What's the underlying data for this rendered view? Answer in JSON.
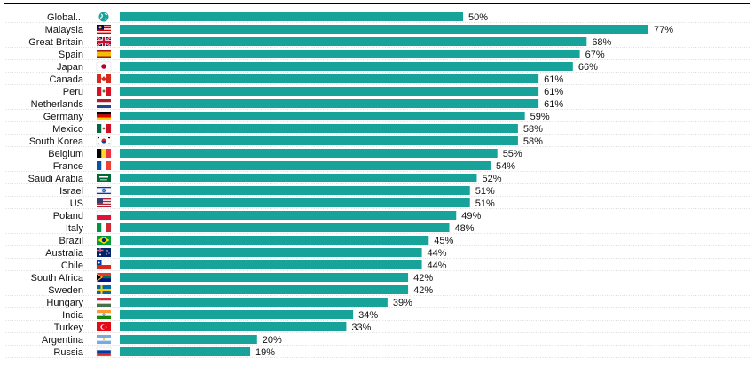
{
  "chart_data": {
    "type": "bar",
    "orientation": "horizontal",
    "title": "",
    "xlabel": "",
    "ylabel": "",
    "xlim": [
      0,
      100
    ],
    "value_suffix": "%",
    "bar_color": "#17a39a",
    "grid": false,
    "legend": "none",
    "categories": [
      "Global...",
      "Malaysia",
      "Great Britain",
      "Spain",
      "Japan",
      "Canada",
      "Peru",
      "Netherlands",
      "Germany",
      "Mexico",
      "South Korea",
      "Belgium",
      "France",
      "Saudi Arabia",
      "Israel",
      "US",
      "Poland",
      "Italy",
      "Brazil",
      "Australia",
      "Chile",
      "South Africa",
      "Sweden",
      "Hungary",
      "India",
      "Turkey",
      "Argentina",
      "Russia"
    ],
    "values": [
      50,
      77,
      68,
      67,
      66,
      61,
      61,
      61,
      59,
      58,
      58,
      55,
      54,
      52,
      51,
      51,
      49,
      48,
      45,
      44,
      44,
      42,
      42,
      39,
      34,
      33,
      20,
      19
    ],
    "value_labels": [
      "50%",
      "77%",
      "68%",
      "67%",
      "66%",
      "61%",
      "61%",
      "61%",
      "59%",
      "58%",
      "58%",
      "55%",
      "54%",
      "52%",
      "51%",
      "51%",
      "49%",
      "48%",
      "45%",
      "44%",
      "44%",
      "42%",
      "42%",
      "39%",
      "34%",
      "33%",
      "20%",
      "19%"
    ],
    "icons": [
      "globe-icon",
      "flag-malaysia-icon",
      "flag-great-britain-icon",
      "flag-spain-icon",
      "flag-japan-icon",
      "flag-canada-icon",
      "flag-peru-icon",
      "flag-netherlands-icon",
      "flag-germany-icon",
      "flag-mexico-icon",
      "flag-south-korea-icon",
      "flag-belgium-icon",
      "flag-france-icon",
      "flag-saudi-arabia-icon",
      "flag-israel-icon",
      "flag-us-icon",
      "flag-poland-icon",
      "flag-italy-icon",
      "flag-brazil-icon",
      "flag-australia-icon",
      "flag-chile-icon",
      "flag-south-africa-icon",
      "flag-sweden-icon",
      "flag-hungary-icon",
      "flag-india-icon",
      "flag-turkey-icon",
      "flag-argentina-icon",
      "flag-russia-icon"
    ]
  }
}
